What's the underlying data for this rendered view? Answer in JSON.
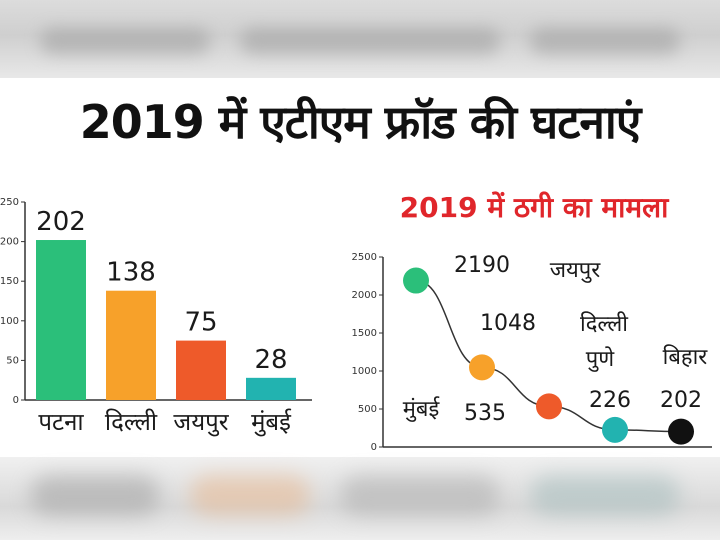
{
  "headline": "2019 में एटीएम फ्रॉड की घटनाएं",
  "chart_data": [
    {
      "type": "bar",
      "title": "2019 में एटीएम फ्रॉड की घटनाएं",
      "categories": [
        "पटना",
        "दिल्ली",
        "जयपुर",
        "मुंबई"
      ],
      "values": [
        202,
        138,
        75,
        28
      ],
      "value_labels": [
        "202",
        "138",
        "75",
        "28"
      ],
      "ylim": [
        0,
        250
      ],
      "y_ticks": [
        "0",
        "50",
        "100",
        "150",
        "200",
        "250"
      ],
      "y_tick_values": [
        0,
        50,
        100,
        150,
        200,
        250
      ],
      "colors": [
        "#2bbf7a",
        "#f7a12a",
        "#ee5a2a",
        "#22b3b0"
      ]
    },
    {
      "type": "line",
      "title": "2019 में ठगी का मामला",
      "categories": [
        "मुंबई",
        "जयपुर",
        "दिल्ली",
        "पुणे",
        "बिहार"
      ],
      "values": [
        2190,
        1048,
        535,
        226,
        202
      ],
      "value_labels": [
        "2190",
        "1048",
        "535",
        "226",
        "202"
      ],
      "ylim": [
        0,
        2500
      ],
      "y_ticks": [
        "0",
        "500",
        "1000",
        "1500",
        "2000",
        "2500"
      ],
      "y_tick_values": [
        0,
        500,
        1000,
        1500,
        2000,
        2500
      ],
      "point_colors": [
        "#2bbf7a",
        "#f7a12a",
        "#ee5a2a",
        "#22b3b0",
        "#111111"
      ],
      "line_color": "#333333"
    }
  ]
}
